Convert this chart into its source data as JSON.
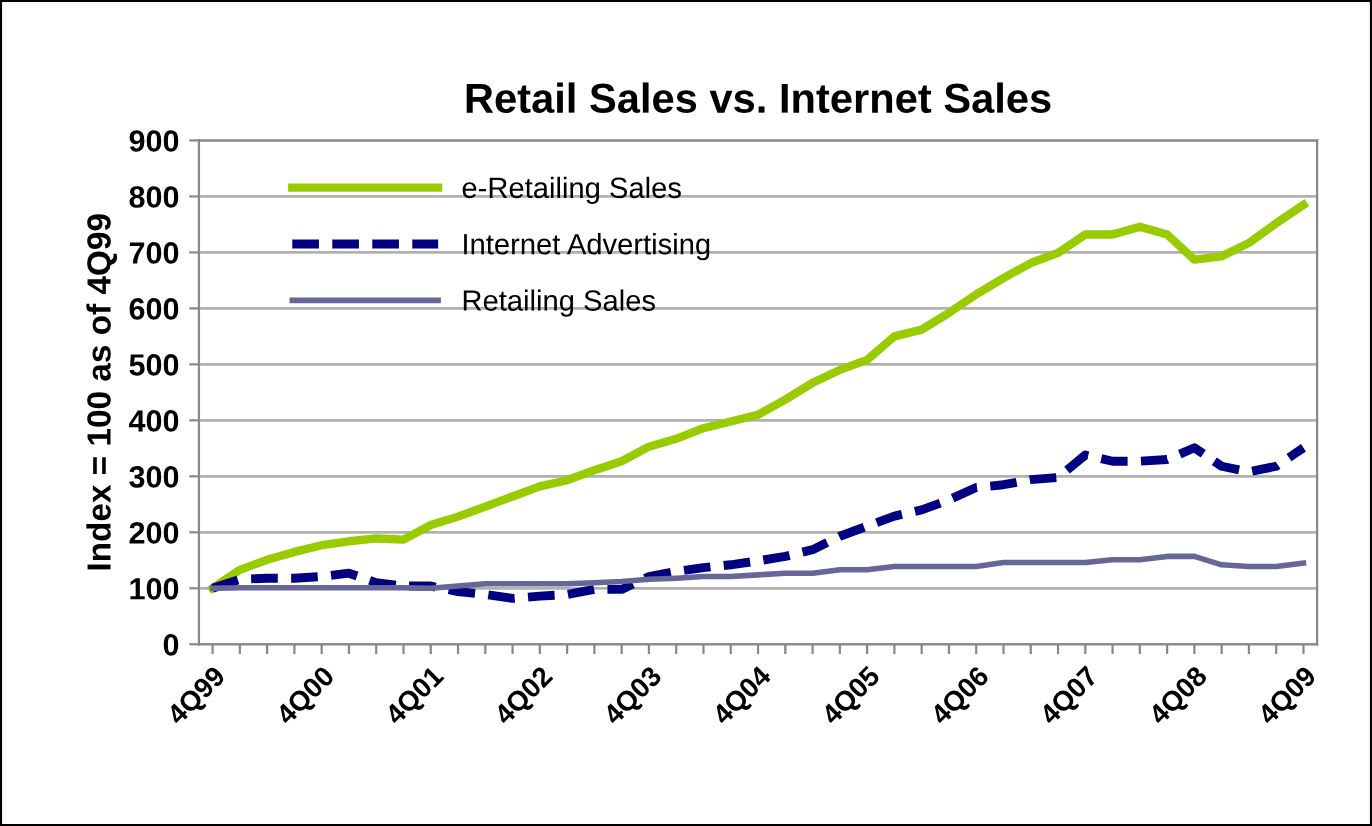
{
  "chart_data": {
    "type": "line",
    "title": "Retail Sales vs. Internet Sales",
    "ylabel": "Index = 100 as of 4Q99",
    "categories": [
      "4Q99",
      null,
      null,
      null,
      "4Q00",
      null,
      null,
      null,
      "4Q01",
      null,
      null,
      null,
      "4Q02",
      null,
      null,
      null,
      "4Q03",
      null,
      null,
      null,
      "4Q04",
      null,
      null,
      null,
      "4Q05",
      null,
      null,
      null,
      "4Q06",
      null,
      null,
      null,
      "4Q07",
      null,
      null,
      null,
      "4Q08",
      null,
      null,
      null,
      "4Q09"
    ],
    "series": [
      {
        "name": "e-Retailing Sales",
        "color": "#99cc00",
        "line_style": "solid",
        "values": [
          100,
          133,
          151,
          165,
          177,
          184,
          189,
          187,
          213,
          228,
          246,
          264,
          282,
          293,
          311,
          327,
          353,
          367,
          386,
          398,
          410,
          437,
          467,
          490,
          508,
          550,
          562,
          592,
          625,
          654,
          681,
          699,
          732,
          732,
          746,
          732,
          687,
          693,
          717,
          752,
          785
        ]
      },
      {
        "name": "Internet Advertising",
        "color": "#000080",
        "line_style": "dashed",
        "values": [
          100,
          116,
          118,
          118,
          121,
          127,
          110,
          104,
          104,
          94,
          89,
          82,
          86,
          89,
          98,
          98,
          121,
          130,
          137,
          142,
          149,
          157,
          169,
          193,
          211,
          229,
          240,
          258,
          280,
          285,
          294,
          298,
          338,
          327,
          327,
          330,
          351,
          318,
          308,
          318,
          351
        ]
      },
      {
        "name": "Retailing Sales",
        "color": "#666699",
        "line_style": "solid",
        "values": [
          100,
          101,
          101,
          101,
          101,
          101,
          101,
          101,
          100,
          104,
          108,
          108,
          108,
          108,
          110,
          112,
          116,
          118,
          121,
          121,
          124,
          127,
          127,
          133,
          133,
          139,
          139,
          139,
          139,
          146,
          146,
          146,
          146,
          151,
          151,
          157,
          157,
          142,
          139,
          139,
          145
        ]
      }
    ],
    "ylim": [
      0,
      900
    ],
    "yticks": [
      0,
      100,
      200,
      300,
      400,
      500,
      600,
      700,
      800,
      900
    ],
    "grid": "y",
    "legend": "top left",
    "marker": "none"
  }
}
